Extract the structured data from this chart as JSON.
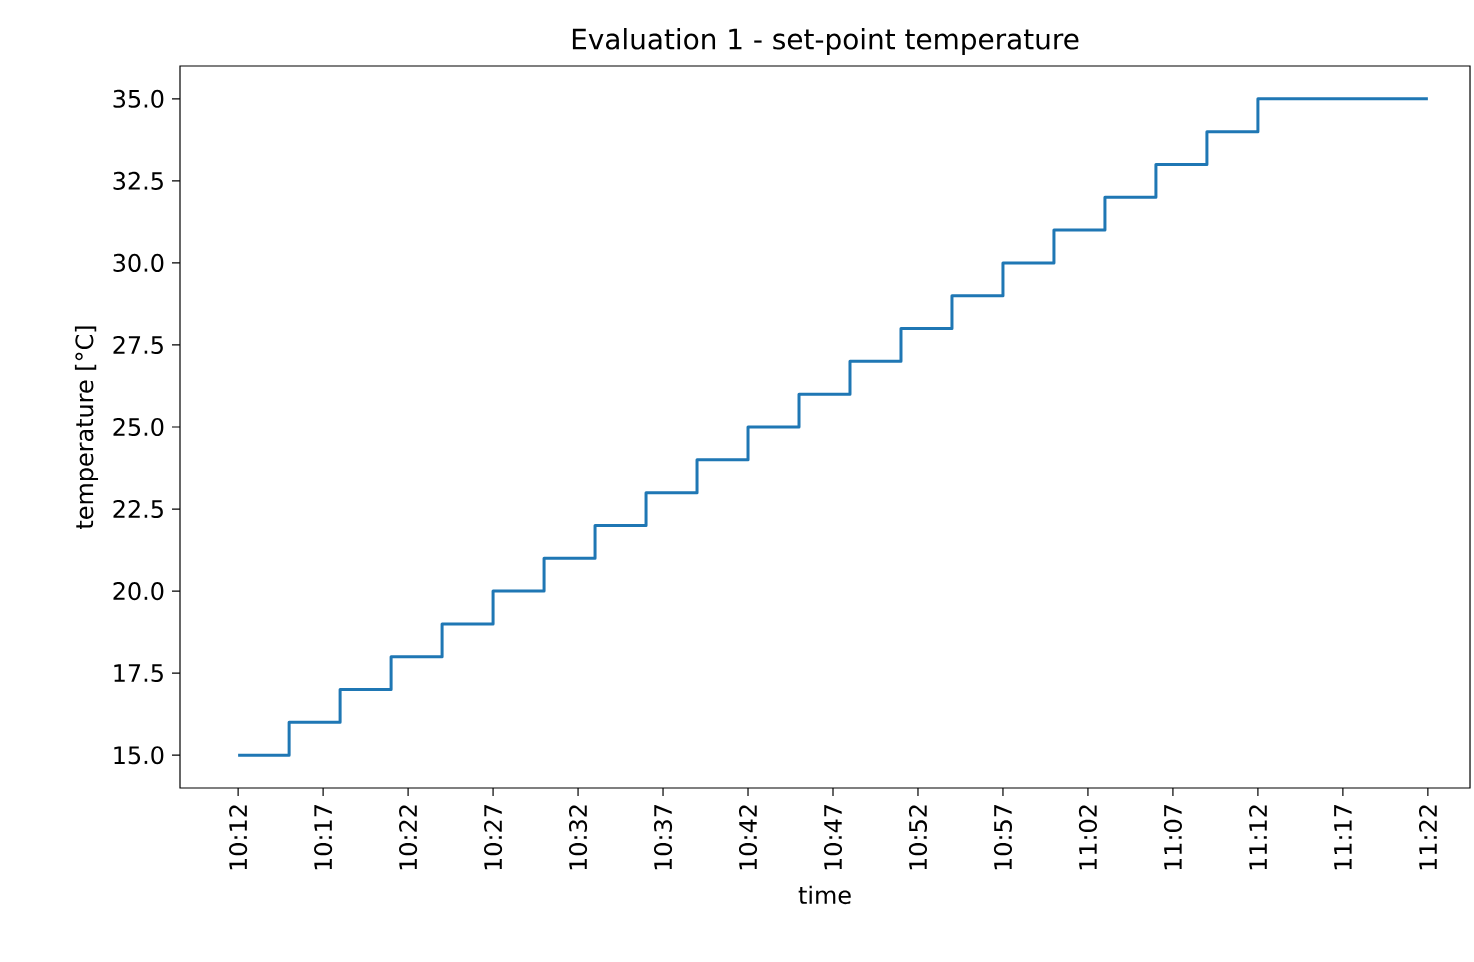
{
  "chart_data": {
    "type": "step",
    "title": "Evaluation 1 - set-point temperature",
    "xlabel": "time",
    "ylabel": "temperature [°C]",
    "x": [
      10.2,
      10.25,
      10.3,
      10.35,
      10.4,
      10.45,
      10.5,
      10.55,
      10.6,
      10.65,
      10.7,
      10.75,
      10.8,
      10.85,
      10.9,
      10.95,
      11.0,
      11.05,
      11.1,
      11.15,
      11.2,
      11.366667
    ],
    "series": [
      {
        "color": "#1f77b4",
        "values": [
          15,
          16,
          17,
          18,
          19,
          20,
          21,
          22,
          23,
          24,
          25,
          26,
          27,
          28,
          29,
          30,
          31,
          32,
          33,
          34,
          35,
          35
        ]
      }
    ],
    "xlim": [
      10.143,
      11.408
    ],
    "ylim": [
      14.0,
      36.0
    ],
    "xticks": [
      {
        "value": 10.2,
        "label": "10:12"
      },
      {
        "value": 10.283333,
        "label": "10:17"
      },
      {
        "value": 10.366667,
        "label": "10:22"
      },
      {
        "value": 10.45,
        "label": "10:27"
      },
      {
        "value": 10.533333,
        "label": "10:32"
      },
      {
        "value": 10.616667,
        "label": "10:37"
      },
      {
        "value": 10.7,
        "label": "10:42"
      },
      {
        "value": 10.783333,
        "label": "10:47"
      },
      {
        "value": 10.866667,
        "label": "10:52"
      },
      {
        "value": 10.95,
        "label": "10:57"
      },
      {
        "value": 11.033333,
        "label": "11:02"
      },
      {
        "value": 11.116667,
        "label": "11:07"
      },
      {
        "value": 11.2,
        "label": "11:12"
      },
      {
        "value": 11.283333,
        "label": "11:17"
      },
      {
        "value": 11.366667,
        "label": "11:22"
      }
    ],
    "yticks": [
      {
        "value": 15,
        "label": "15.0"
      },
      {
        "value": 17.5,
        "label": "17.5"
      },
      {
        "value": 20,
        "label": "20.0"
      },
      {
        "value": 22.5,
        "label": "22.5"
      },
      {
        "value": 25,
        "label": "25.0"
      },
      {
        "value": 27.5,
        "label": "27.5"
      },
      {
        "value": 30,
        "label": "30.0"
      },
      {
        "value": 32.5,
        "label": "32.5"
      },
      {
        "value": 35,
        "label": "35.0"
      }
    ],
    "grid": false
  }
}
